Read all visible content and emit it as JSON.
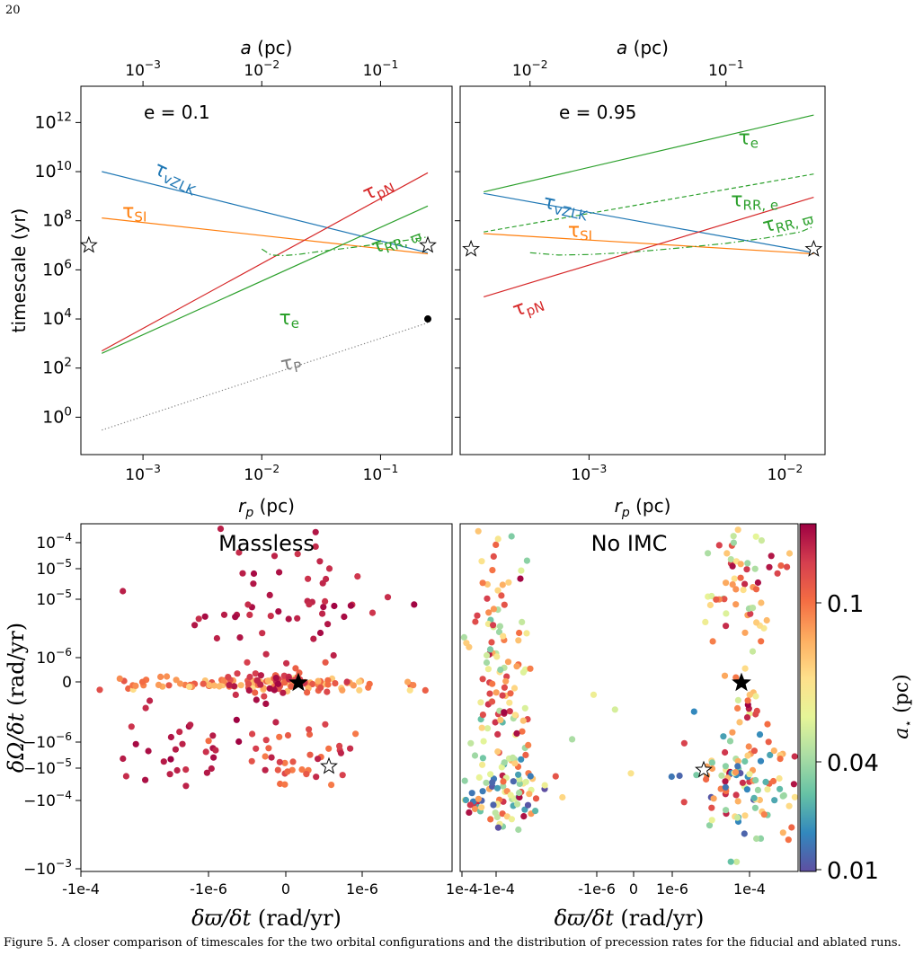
{
  "page_number": "20",
  "caption": "Figure 5. A closer comparison of timescales for the two orbital configurations and the distribution of precession rates for the fiducial and ablated runs.",
  "colors": {
    "blue": "#1f77b4",
    "orange": "#ff7f0e",
    "green": "#2ca02c",
    "red": "#d62728",
    "gray": "#7f7f7f"
  },
  "chart_data": [
    {
      "type": "line",
      "panel": "top-left",
      "annotation": "e = 0.1",
      "xscale": "log",
      "yscale": "log",
      "xlabel": "r_p (pc)",
      "ylabel": "timescale (yr)",
      "top_xlabel": "a (pc)",
      "xlim": [
        0.0003,
        0.4
      ],
      "ylim": [
        0.03,
        30000000000000.0
      ],
      "xticks": [
        {
          "v": 0.001,
          "l": "10^-3"
        },
        {
          "v": 0.01,
          "l": "10^-2"
        },
        {
          "v": 0.1,
          "l": "10^-1"
        }
      ],
      "top_ticks": [
        {
          "v": 0.001,
          "l": "10^-3"
        },
        {
          "v": 0.01,
          "l": "10^-2"
        },
        {
          "v": 0.1,
          "l": "10^-1"
        }
      ],
      "yticks": [
        {
          "v": 1,
          "l": "10^0"
        },
        {
          "v": 100,
          "l": "10^2"
        },
        {
          "v": 10000,
          "l": "10^4"
        },
        {
          "v": 1000000,
          "l": "10^6"
        },
        {
          "v": 100000000,
          "l": "10^8"
        },
        {
          "v": 10000000000,
          "l": "10^10"
        },
        {
          "v": 1000000000000,
          "l": "10^12"
        }
      ],
      "series": [
        {
          "key": "vZLK",
          "name": "τvZLK",
          "color": "blue",
          "style": "solid",
          "x": [
            0.00045,
            0.25
          ],
          "y": [
            10000000000.0,
            5000000.0
          ]
        },
        {
          "key": "SI",
          "name": "τSI",
          "color": "orange",
          "style": "solid",
          "x": [
            0.00045,
            0.25
          ],
          "y": [
            130000000.0,
            4500000.0
          ]
        },
        {
          "key": "pN",
          "name": "τpN",
          "color": "red",
          "style": "solid",
          "x": [
            0.00045,
            0.25
          ],
          "y": [
            500,
            9000000000.0
          ]
        },
        {
          "key": "e",
          "name": "τe",
          "color": "green",
          "style": "solid",
          "x": [
            0.00045,
            0.25
          ],
          "y": [
            400,
            400000000.0
          ]
        },
        {
          "key": "RRw",
          "name": "τRR, ϖ",
          "color": "green",
          "style": "dashdot",
          "x": [
            0.01,
            0.012,
            0.015,
            0.02,
            0.03,
            0.05,
            0.08,
            0.12,
            0.18,
            0.25
          ],
          "y": [
            7000000.0,
            4000000.0,
            3800000.0,
            4200000.0,
            5500000.0,
            7500000.0,
            10000000.0,
            13000000.0,
            17000000.0,
            22000000.0
          ]
        },
        {
          "key": "P",
          "name": "τP",
          "color": "gray",
          "style": "dotted",
          "x": [
            0.00045,
            0.25
          ],
          "y": [
            0.3,
            7000
          ]
        }
      ],
      "labels": [
        {
          "key": "vZLK",
          "sub": "vZLK",
          "color": "blue",
          "x": 0.0018,
          "y": 3500000000.0,
          "rot": 25
        },
        {
          "key": "SI",
          "sub": "SI",
          "color": "orange",
          "x": 0.00085,
          "y": 130000000.0,
          "rot": 0
        },
        {
          "key": "pN",
          "sub": "pN",
          "color": "red",
          "x": 0.1,
          "y": 1200000000.0,
          "rot": -25
        },
        {
          "key": "e",
          "sub": "e",
          "color": "green",
          "x": 0.017,
          "y": 6000,
          "rot": 0
        },
        {
          "key": "RRw",
          "sub": "RR, ϖ",
          "color": "green",
          "x": 0.14,
          "y": 10000000.0,
          "rot": -20
        },
        {
          "key": "P",
          "sub": "P",
          "color": "gray",
          "x": 0.018,
          "y": 90,
          "rot": -12
        }
      ],
      "markers": [
        {
          "type": "open-star",
          "x": 0.00035,
          "y": 10000000.0
        },
        {
          "type": "open-star",
          "x": 0.25,
          "y": 10000000.0
        },
        {
          "type": "dot",
          "x": 0.25,
          "y": 10000
        }
      ]
    },
    {
      "type": "line",
      "panel": "top-right",
      "annotation": "e = 0.95",
      "xscale": "log",
      "yscale": "log",
      "xlabel": "r_p (pc)",
      "top_xlabel": "a (pc)",
      "xlim": [
        0.00022,
        0.016
      ],
      "ylim": [
        0.03,
        30000000000000.0
      ],
      "xticks": [
        {
          "v": 0.001,
          "l": "10^-3"
        },
        {
          "v": 0.01,
          "l": "10^-2"
        }
      ],
      "top_ticks": [
        {
          "v": 0.0005,
          "l": "10^-2"
        },
        {
          "v": 0.005,
          "l": "10^-1"
        }
      ],
      "series": [
        {
          "key": "e",
          "name": "τe",
          "color": "green",
          "style": "solid",
          "x": [
            0.00029,
            0.014
          ],
          "y": [
            1500000000.0,
            2000000000000.0
          ]
        },
        {
          "key": "RRe",
          "name": "τRR, e",
          "color": "green",
          "style": "dashed",
          "x": [
            0.00029,
            0.014
          ],
          "y": [
            35000000.0,
            8000000000.0
          ]
        },
        {
          "key": "vZLK",
          "name": "τvZLK",
          "color": "blue",
          "style": "solid",
          "x": [
            0.00029,
            0.014
          ],
          "y": [
            1300000000.0,
            5000000.0
          ]
        },
        {
          "key": "SI",
          "name": "τSI",
          "color": "orange",
          "style": "solid",
          "x": [
            0.00029,
            0.014
          ],
          "y": [
            30000000.0,
            4500000.0
          ]
        },
        {
          "key": "RRw",
          "name": "τRR, ϖ",
          "color": "green",
          "style": "dashdot",
          "x": [
            0.0005,
            0.0007,
            0.001,
            0.0015,
            0.002,
            0.003,
            0.005,
            0.008,
            0.012,
            0.014
          ],
          "y": [
            5000000.0,
            4000000.0,
            4200000.0,
            5000000.0,
            6000000.0,
            8000000.0,
            12000000.0,
            20000000.0,
            35000000.0,
            60000000.0
          ]
        },
        {
          "key": "pN",
          "name": "τpN",
          "color": "red",
          "style": "solid",
          "x": [
            0.00029,
            0.014
          ],
          "y": [
            80000,
            900000000.0
          ]
        }
      ],
      "labels": [
        {
          "key": "e",
          "sub": "e",
          "color": "green",
          "x": 0.0065,
          "y": 130000000000.0,
          "rot": 0
        },
        {
          "key": "RRe",
          "sub": "RR, e",
          "color": "green",
          "x": 0.007,
          "y": 400000000.0,
          "rot": 0
        },
        {
          "key": "vZLK",
          "sub": "vZLK",
          "color": "blue",
          "x": 0.00075,
          "y": 220000000.0,
          "rot": 12
        },
        {
          "key": "SI",
          "sub": "SI",
          "color": "orange",
          "x": 0.0009,
          "y": 22000000.0,
          "rot": 0
        },
        {
          "key": "RRw",
          "sub": "RR, ϖ",
          "color": "green",
          "x": 0.0105,
          "y": 60000000.0,
          "rot": -15
        },
        {
          "key": "pN",
          "sub": "pN",
          "color": "red",
          "x": 0.0005,
          "y": 20000.0,
          "rot": -20
        }
      ],
      "markers": [
        {
          "type": "open-star",
          "x": 0.00025,
          "y": 7000000.0
        },
        {
          "type": "open-star",
          "x": 0.014,
          "y": 7000000.0
        }
      ]
    },
    {
      "type": "scatter",
      "panel": "bottom-left",
      "annotation": "Massless",
      "xscale": "symlog",
      "yscale": "symlog",
      "xlabel": "δϖ/δt (rad/yr)",
      "ylabel": "δΩ/δt (rad/yr)",
      "xlim": [
        -2.2,
        2.2
      ],
      "ylim": [
        -3,
        4.5
      ],
      "xticks": [
        {
          "v": -2,
          "l": "-1e-4"
        },
        {
          "v": -0.65,
          "l": "-1e-6"
        },
        {
          "v": 0,
          "l": "0"
        },
        {
          "v": 0.65,
          "l": "1e-6"
        }
      ],
      "yticks": [
        {
          "v": 4,
          "l": "10^-4"
        },
        {
          "v": 3,
          "l": "10^-5"
        },
        {
          "v": 2,
          "l": "10^-6"
        },
        {
          "v": 0,
          "l": "0"
        },
        {
          "v": -1,
          "l": "-10^-6"
        },
        {
          "v": -2,
          "l": "-10^-4"
        },
        {
          "v": -3,
          "l": "-10^-3"
        }
      ],
      "ytick_positions": {
        "10^-4": 4.5,
        "10^-5": 3.35,
        "10^-6": 2.15,
        "0": 0,
        "-10^-6": -1.3,
        "-10^-5": -2.9,
        "-10^-4": -4.45,
        "-10^-3": -5.6
      },
      "markers": [
        {
          "type": "filled-star",
          "x": 0.15,
          "y": 0
        },
        {
          "type": "open-star",
          "x": 0.6,
          "y": -2.2
        }
      ]
    },
    {
      "type": "scatter",
      "panel": "bottom-right",
      "annotation": "No IMC",
      "xscale": "symlog",
      "yscale": "symlog",
      "xlabel": "δϖ/δt (rad/yr)",
      "colorbar": {
        "label": "a⋆ (pc)",
        "ticks": [
          {
            "v": 0.1,
            "l": "0.1"
          },
          {
            "v": 0.04,
            "l": "0.04"
          },
          {
            "v": 0.01,
            "l": "0.01"
          }
        ]
      },
      "xticks": [
        {
          "l": "1e-4"
        },
        {
          "l": "-1e-4"
        },
        {
          "l": "-1e-6"
        },
        {
          "l": "0"
        },
        {
          "l": "1e-6"
        },
        {
          "l": "1e-4"
        }
      ],
      "markers": [
        {
          "type": "filled-star",
          "x": 1.85,
          "y": 0
        },
        {
          "type": "open-star",
          "x": 1.3,
          "y": -2.2
        }
      ]
    }
  ]
}
